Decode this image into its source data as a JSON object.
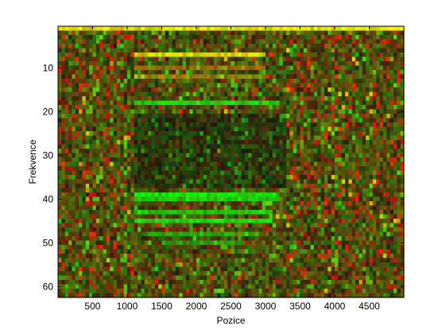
{
  "chart_data": {
    "type": "heatmap",
    "title": "",
    "xlabel": "Pozice",
    "ylabel": "Frekvence",
    "xlim": [
      1,
      5000
    ],
    "ylim": [
      1,
      62
    ],
    "y_direction": "reversed",
    "grid": false,
    "colormap": "red-green-yellow (RGB composite)",
    "x_ticks": [
      500,
      1000,
      1500,
      2000,
      2500,
      3000,
      3500,
      4000,
      4500
    ],
    "x_tick_labels": [
      "500",
      "1000",
      "1500",
      "2000",
      "2500",
      "3000",
      "3500",
      "4000",
      "4500"
    ],
    "y_ticks": [
      10,
      20,
      30,
      40,
      50,
      60
    ],
    "y_tick_labels": [
      "10",
      "20",
      "30",
      "40",
      "50",
      "60"
    ],
    "features": [
      {
        "frequency": 1,
        "from": 1,
        "to": 5000,
        "color": "yellow",
        "strength": 1.0
      },
      {
        "frequency": 7,
        "from": 1100,
        "to": 3000,
        "color": "yellow",
        "strength": 0.9
      },
      {
        "frequency": 10,
        "from": 1100,
        "to": 3000,
        "color": "orange",
        "strength": 0.5
      },
      {
        "frequency": 12,
        "from": 1100,
        "to": 3000,
        "color": "yellow",
        "strength": 0.4
      },
      {
        "frequency": 18,
        "from": 1100,
        "to": 3200,
        "color": "green",
        "strength": 0.9
      },
      {
        "frequency": 39,
        "from": 1100,
        "to": 3200,
        "color": "green",
        "strength": 1.0
      },
      {
        "frequency": 40,
        "from": 1100,
        "to": 3200,
        "color": "green",
        "strength": 0.8
      },
      {
        "frequency": 43,
        "from": 1100,
        "to": 3100,
        "color": "green",
        "strength": 0.8
      },
      {
        "frequency": 45,
        "from": 1100,
        "to": 3100,
        "color": "green",
        "strength": 0.9
      },
      {
        "frequency": 48,
        "from": 1300,
        "to": 2900,
        "color": "green",
        "strength": 0.6
      },
      {
        "frequency": 50,
        "from": 1500,
        "to": 2700,
        "color": "green",
        "strength": 0.5
      }
    ]
  }
}
